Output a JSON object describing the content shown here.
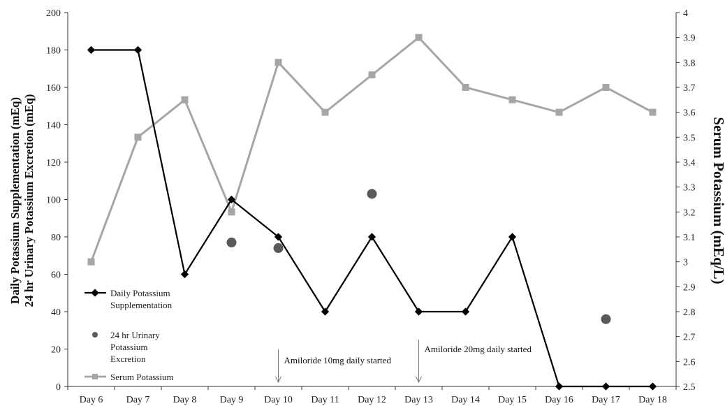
{
  "chart_data": {
    "type": "line",
    "categories": [
      "Day 6",
      "Day 7",
      "Day 8",
      "Day 9",
      "Day 10",
      "Day 11",
      "Day 12",
      "Day 13",
      "Day 14",
      "Day 15",
      "Day 16",
      "Day 17",
      "Day 18"
    ],
    "y_left": {
      "label_line1": "Daily Potassium Supplementation (mEq)",
      "label_line2": "24 hr Urinary Potassium Excretion (mEq)",
      "range": [
        0,
        200
      ],
      "ticks": [
        "0",
        "20",
        "40",
        "60",
        "80",
        "100",
        "120",
        "140",
        "160",
        "180",
        "200"
      ]
    },
    "y_right": {
      "label": "Serum Potassium (mEq/L)",
      "range": [
        2.5,
        4
      ],
      "ticks": [
        "2.5",
        "2.6",
        "2.7",
        "2.8",
        "2.9",
        "3",
        "3.1",
        "3.2",
        "3.3",
        "3.4",
        "3.5",
        "3.6",
        "3.7",
        "3.8",
        "3.9",
        "4"
      ]
    },
    "grid": false,
    "legend_position": "bottom-left",
    "series": [
      {
        "name": "Daily Potassium Supplementation",
        "axis": "left",
        "style": "line-diamond",
        "color": "#000000",
        "values": [
          180,
          180,
          60,
          100,
          80,
          40,
          80,
          40,
          40,
          80,
          0,
          0,
          0
        ]
      },
      {
        "name": "24 hr Urinary Potassium Excretion",
        "axis": "left",
        "style": "scatter-circle",
        "color": "#595959",
        "values": [
          null,
          null,
          null,
          77,
          74,
          null,
          103,
          null,
          null,
          null,
          null,
          36,
          null
        ]
      },
      {
        "name": "Serum Potassium",
        "axis": "right",
        "style": "line-square",
        "color": "#a6a6a6",
        "values": [
          3.0,
          3.5,
          3.65,
          3.2,
          3.8,
          3.6,
          3.75,
          3.9,
          3.7,
          3.65,
          3.6,
          3.7,
          3.6
        ]
      }
    ],
    "legend": [
      {
        "line1": "Daily Potassium",
        "line2": "Supplementation",
        "line3": ""
      },
      {
        "line1": "24 hr Urinary",
        "line2": "Potassium",
        "line3": "Excretion"
      },
      {
        "line1": "Serum Potassium",
        "line2": "",
        "line3": ""
      }
    ],
    "annotations": [
      {
        "text": "Amiloride 10mg daily started",
        "category": "Day 10"
      },
      {
        "text": "Amiloride 20mg daily started",
        "category": "Day 13"
      }
    ]
  }
}
